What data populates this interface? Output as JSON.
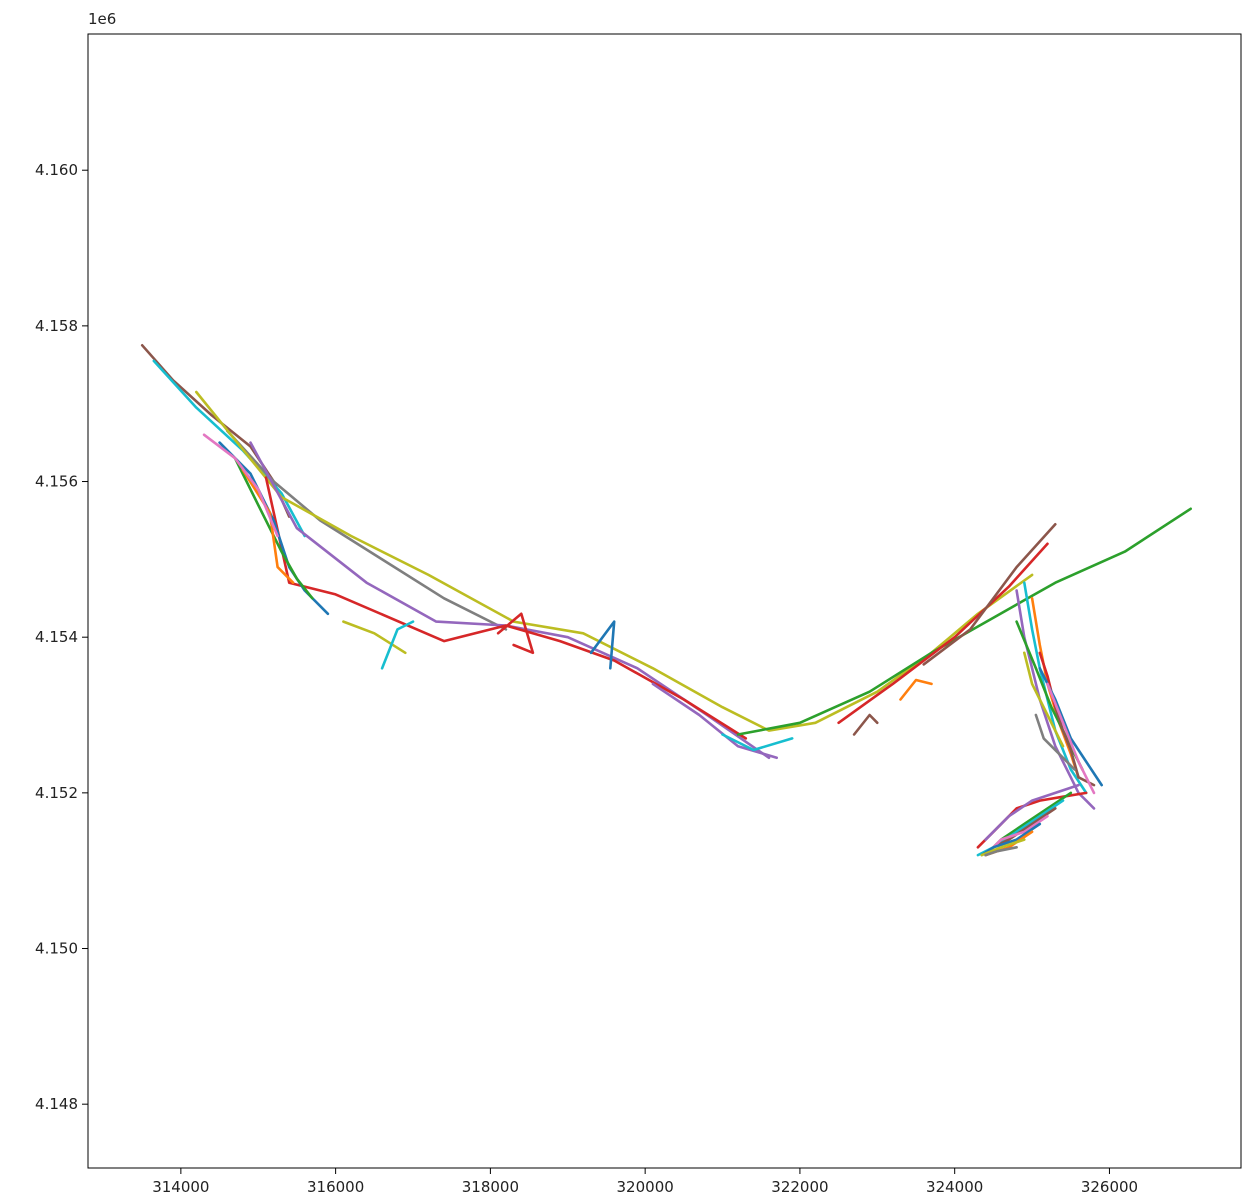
{
  "chart_data": {
    "type": "line",
    "title": "",
    "xlabel": "",
    "ylabel": "",
    "y_offset_label": "1e6",
    "xlim": [
      312800,
      327700
    ],
    "ylim": [
      4.14718,
      4.16175
    ],
    "x_ticks": [
      314000,
      316000,
      318000,
      320000,
      322000,
      324000,
      326000
    ],
    "x_tick_labels": [
      "314000",
      "316000",
      "318000",
      "320000",
      "322000",
      "324000",
      "326000"
    ],
    "y_ticks": [
      4.148,
      4.15,
      4.152,
      4.154,
      4.156,
      4.158,
      4.16
    ],
    "y_tick_labels": [
      "4.148",
      "4.150",
      "4.152",
      "4.154",
      "4.156",
      "4.158",
      "4.160"
    ],
    "grid": false,
    "legend": "none",
    "colors": [
      "#1f77b4",
      "#ff7f0e",
      "#2ca02c",
      "#d62728",
      "#9467bd",
      "#8c564b",
      "#e377c2",
      "#7f7f7f",
      "#bcbd22",
      "#17becf"
    ],
    "series": [
      {
        "color": "#8c564b",
        "x": [
          313500,
          313900,
          314400,
          314900,
          315200,
          315400
        ],
        "y": [
          4.15775,
          4.1573,
          4.15685,
          4.15645,
          4.156,
          4.15555
        ]
      },
      {
        "color": "#17becf",
        "x": [
          313650,
          314200,
          314800,
          315300,
          315600
        ],
        "y": [
          4.15755,
          4.15695,
          4.1564,
          4.15585,
          4.1553
        ]
      },
      {
        "color": "#7f7f7f",
        "x": [
          314600,
          315200,
          315800,
          316600,
          317400,
          318200
        ],
        "y": [
          4.15665,
          4.156,
          4.1555,
          4.155,
          4.1545,
          4.1541
        ]
      },
      {
        "color": "#bcbd22",
        "x": [
          314200,
          315300,
          316200,
          317200,
          318300,
          319200,
          320100,
          321000,
          321600,
          322200,
          323000,
          323700,
          324300,
          325000
        ],
        "y": [
          4.15715,
          4.1558,
          4.1553,
          4.1548,
          4.1542,
          4.15405,
          4.1536,
          4.1531,
          4.1528,
          4.1529,
          4.1533,
          4.1538,
          4.1543,
          4.1548
        ]
      },
      {
        "color": "#9467bd",
        "x": [
          314900,
          315500,
          316400,
          317300,
          318200,
          319000,
          319900,
          320800,
          321600
        ],
        "y": [
          4.1565,
          4.1554,
          4.1547,
          4.1542,
          4.15415,
          4.154,
          4.1536,
          4.153,
          4.15245
        ]
      },
      {
        "color": "#d62728",
        "x": [
          315100,
          315400,
          316000,
          317400,
          318200,
          318900,
          319600,
          320500,
          321300
        ],
        "y": [
          4.15605,
          4.1547,
          4.15455,
          4.15395,
          4.15415,
          4.15395,
          4.1537,
          4.1532,
          4.1527
        ]
      },
      {
        "color": "#1f77b4",
        "x": [
          314500,
          314900,
          315200,
          315400,
          315600,
          315900
        ],
        "y": [
          4.1565,
          4.1561,
          4.1555,
          4.1549,
          4.1546,
          4.1543
        ]
      },
      {
        "color": "#2ca02c",
        "x": [
          314700,
          315000,
          315300,
          315500,
          315700
        ],
        "y": [
          4.1563,
          4.1557,
          4.1551,
          4.15475,
          4.1545
        ]
      },
      {
        "color": "#ff7f0e",
        "x": [
          314800,
          315150,
          315250,
          315450
        ],
        "y": [
          4.15615,
          4.1556,
          4.1549,
          4.1547
        ]
      },
      {
        "color": "#e377c2",
        "x": [
          314300,
          314700,
          315000,
          315250
        ],
        "y": [
          4.1566,
          4.1563,
          4.1559,
          4.1553
        ]
      },
      {
        "color": "#2ca02c",
        "x": [
          321200,
          322000,
          322900,
          323700,
          324500,
          325300,
          326200,
          327050
        ],
        "y": [
          4.15275,
          4.1529,
          4.1533,
          4.1538,
          4.15425,
          4.1547,
          4.1551,
          4.15565
        ]
      },
      {
        "color": "#d62728",
        "x": [
          322500,
          323200,
          324000,
          324700,
          325200
        ],
        "y": [
          4.1529,
          4.1534,
          4.154,
          4.15465,
          4.1552
        ]
      },
      {
        "color": "#8c564b",
        "x": [
          323600,
          324200,
          324800,
          325300
        ],
        "y": [
          4.15365,
          4.1541,
          4.1549,
          4.15545
        ]
      },
      {
        "color": "#1f77b4",
        "x": [
          319300,
          319600,
          319550
        ],
        "y": [
          4.1538,
          4.1542,
          4.1536
        ]
      },
      {
        "color": "#bcbd22",
        "x": [
          316100,
          316500,
          316900
        ],
        "y": [
          4.1542,
          4.15405,
          4.1538
        ]
      },
      {
        "color": "#17becf",
        "x": [
          316600,
          316800,
          317000
        ],
        "y": [
          4.1536,
          4.1541,
          4.1542
        ]
      },
      {
        "color": "#d62728",
        "x": [
          318100,
          318400,
          318550,
          318300
        ],
        "y": [
          4.15405,
          4.1543,
          4.1538,
          4.1539
        ]
      },
      {
        "color": "#9467bd",
        "x": [
          320100,
          320700,
          321200,
          321700
        ],
        "y": [
          4.1534,
          4.153,
          4.1526,
          4.15245
        ]
      },
      {
        "color": "#17becf",
        "x": [
          321000,
          321400,
          321900
        ],
        "y": [
          4.15275,
          4.15255,
          4.1527
        ]
      },
      {
        "color": "#8c564b",
        "x": [
          322700,
          322900,
          323000
        ],
        "y": [
          4.15275,
          4.153,
          4.1529
        ]
      },
      {
        "color": "#ff7f0e",
        "x": [
          323300,
          323500,
          323700
        ],
        "y": [
          4.1532,
          4.15345,
          4.1534
        ]
      },
      {
        "color": "#9467bd",
        "x": [
          324800,
          324900,
          325000,
          325100,
          325200,
          325300,
          325400,
          325500,
          325600,
          325700,
          325800
        ],
        "y": [
          4.1546,
          4.154,
          4.1536,
          4.1532,
          4.1529,
          4.1526,
          4.1524,
          4.1522,
          4.152,
          4.1519,
          4.1518
        ]
      },
      {
        "color": "#17becf",
        "x": [
          324900,
          325000,
          325100,
          325200,
          325300,
          325500,
          325700
        ],
        "y": [
          4.1547,
          4.1541,
          4.1536,
          4.1532,
          4.1528,
          4.1523,
          4.152
        ]
      },
      {
        "color": "#ff7f0e",
        "x": [
          325000,
          325100,
          325200,
          325350,
          325500,
          325600
        ],
        "y": [
          4.1545,
          4.1539,
          4.1534,
          4.1529,
          4.1525,
          4.1522
        ]
      },
      {
        "color": "#2ca02c",
        "x": [
          324800,
          325050,
          325250,
          325450,
          325650
        ],
        "y": [
          4.1542,
          4.1536,
          4.1531,
          4.1527,
          4.1523
        ]
      },
      {
        "color": "#d62728",
        "x": [
          325100,
          325200,
          325300,
          325400
        ],
        "y": [
          4.1538,
          4.1535,
          4.1531,
          4.1529
        ]
      },
      {
        "color": "#8c564b",
        "x": [
          325300,
          325400,
          325500,
          325600,
          325800
        ],
        "y": [
          4.1531,
          4.1528,
          4.15255,
          4.1522,
          4.1521
        ]
      },
      {
        "color": "#1f77b4",
        "x": [
          325100,
          325300,
          325500,
          325900
        ],
        "y": [
          4.1536,
          4.1532,
          4.1527,
          4.1521
        ]
      },
      {
        "color": "#e377c2",
        "x": [
          325200,
          325400,
          325600,
          325800
        ],
        "y": [
          4.1534,
          4.1529,
          4.1524,
          4.152
        ]
      },
      {
        "color": "#bcbd22",
        "x": [
          324900,
          325000,
          325200,
          325400
        ],
        "y": [
          4.1538,
          4.1534,
          4.153,
          4.1526
        ]
      },
      {
        "color": "#7f7f7f",
        "x": [
          325050,
          325150,
          325350,
          325550
        ],
        "y": [
          4.153,
          4.1527,
          4.1525,
          4.1523
        ]
      },
      {
        "color": "#d62728",
        "x": [
          325700,
          325400,
          325100,
          324800,
          324500,
          324300
        ],
        "y": [
          4.152,
          4.15195,
          4.1519,
          4.1518,
          4.1515,
          4.1513
        ]
      },
      {
        "color": "#9467bd",
        "x": [
          325600,
          325300,
          325000,
          324700,
          324400
        ],
        "y": [
          4.1521,
          4.152,
          4.1519,
          4.1517,
          4.1514
        ]
      },
      {
        "color": "#2ca02c",
        "x": [
          325500,
          325200,
          324900,
          324600,
          324400
        ],
        "y": [
          4.152,
          4.1518,
          4.1516,
          4.1514,
          4.1512
        ]
      },
      {
        "color": "#17becf",
        "x": [
          325400,
          325100,
          324800,
          324500,
          324300
        ],
        "y": [
          4.1519,
          4.1517,
          4.1515,
          4.1513,
          4.1512
        ]
      },
      {
        "color": "#8c564b",
        "x": [
          325300,
          325000,
          324700,
          324500
        ],
        "y": [
          4.1518,
          4.1516,
          4.1514,
          4.1513
        ]
      },
      {
        "color": "#e377c2",
        "x": [
          325200,
          324900,
          324600,
          324400
        ],
        "y": [
          4.1517,
          4.1515,
          4.1514,
          4.1512
        ]
      },
      {
        "color": "#1f77b4",
        "x": [
          325100,
          324800,
          324500,
          324350
        ],
        "y": [
          4.1516,
          4.1514,
          4.1513,
          4.1512
        ]
      },
      {
        "color": "#ff7f0e",
        "x": [
          325000,
          324700,
          324400
        ],
        "y": [
          4.1515,
          4.1513,
          4.1512
        ]
      },
      {
        "color": "#bcbd22",
        "x": [
          324900,
          324600,
          324350
        ],
        "y": [
          4.1514,
          4.1513,
          4.1512
        ]
      },
      {
        "color": "#7f7f7f",
        "x": [
          324800,
          324550,
          324400
        ],
        "y": [
          4.1513,
          4.15125,
          4.1512
        ]
      }
    ]
  }
}
